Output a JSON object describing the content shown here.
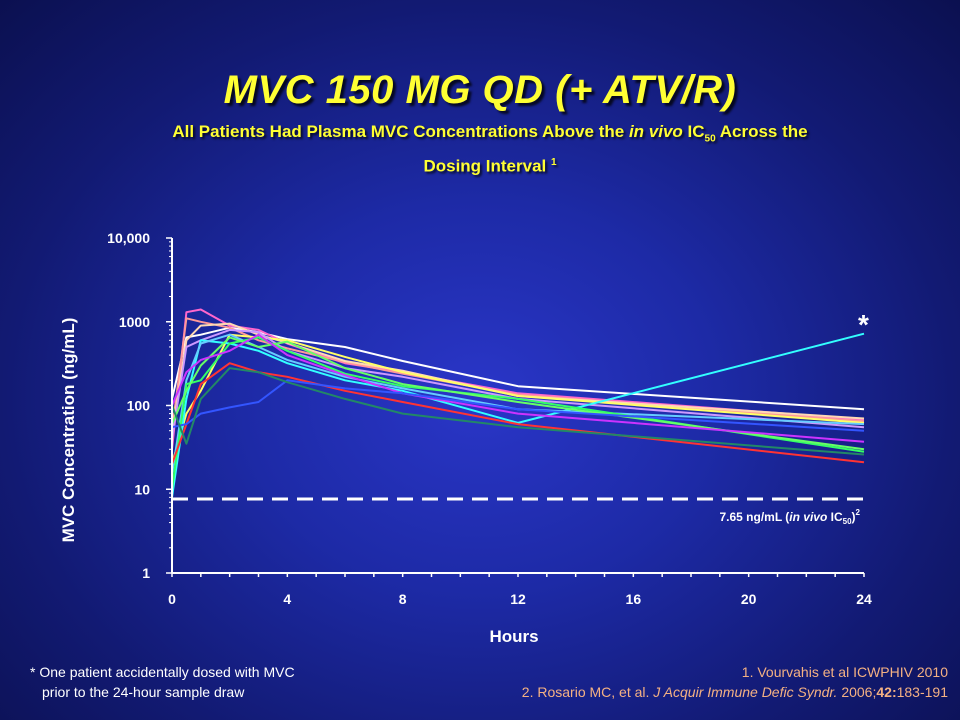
{
  "title": "MVC 150 MG QD (+ ATV/R)",
  "subtitle": {
    "pre": "All Patients Had Plasma MVC Concentrations Above the ",
    "italic": "in vivo",
    "mid": " IC",
    "sub": "50",
    "post": " Across the Dosing Interval ",
    "sup": "1"
  },
  "footnote": {
    "line1": "* One patient accidentally dosed with MVC",
    "line2": "prior to the 24-hour sample draw"
  },
  "references": {
    "ref1": "1.  Vourvahis et al ICWPHIV 2010",
    "ref2_pre": "2. Rosario MC, et al. ",
    "ref2_journal": "J Acquir Immune Defic Syndr.",
    "ref2_year": " 2006;",
    "ref2_vol": "42:",
    "ref2_pages": "183-191"
  },
  "threshold_label": {
    "pre": "7.65 ng/mL (",
    "italic": "in vivo",
    "mid": " IC",
    "sub": "50",
    "post": ")",
    "sup": "2"
  },
  "asterisk": "*",
  "chart_data": {
    "type": "line",
    "xlabel": "Hours",
    "ylabel": "MVC Concentration (ng/mL)",
    "xlim": [
      0,
      24
    ],
    "ylim": [
      1,
      10000
    ],
    "yscale": "log",
    "xticks": [
      0,
      4,
      8,
      12,
      16,
      20,
      24
    ],
    "xtick_labels": [
      "0",
      "4",
      "8",
      "12",
      "16",
      "20",
      "24"
    ],
    "yticks": [
      1,
      10,
      100,
      1000,
      10000
    ],
    "ytick_labels": [
      "1",
      "10",
      "100",
      "1000",
      "10,000"
    ],
    "threshold": {
      "value": 7.65,
      "style": "dashed",
      "color": "#ffffff"
    },
    "x": [
      0,
      0.5,
      1,
      2,
      3,
      4,
      6,
      8,
      12,
      24
    ],
    "series": [
      {
        "color": "#ffffff",
        "values": [
          120,
          650,
          700,
          850,
          750,
          620,
          500,
          340,
          170,
          90
        ]
      },
      {
        "color": "#ff66cc",
        "values": [
          30,
          1300,
          1400,
          900,
          800,
          550,
          320,
          250,
          140,
          68
        ]
      },
      {
        "color": "#ff9999",
        "values": [
          50,
          1100,
          1000,
          850,
          600,
          480,
          330,
          240,
          135,
          65
        ]
      },
      {
        "color": "#ffd9b3",
        "values": [
          45,
          600,
          900,
          950,
          700,
          560,
          340,
          260,
          130,
          70
        ]
      },
      {
        "color": "#ffff66",
        "values": [
          20,
          80,
          150,
          700,
          650,
          600,
          380,
          250,
          130,
          62
        ]
      },
      {
        "color": "#cc99ff",
        "values": [
          40,
          500,
          600,
          800,
          750,
          450,
          280,
          220,
          120,
          55
        ]
      },
      {
        "color": "#33ffff",
        "values": [
          8,
          120,
          600,
          550,
          450,
          320,
          200,
          150,
          62,
          720
        ]
      },
      {
        "color": "#66ccff",
        "values": [
          15,
          200,
          550,
          700,
          500,
          350,
          220,
          160,
          90,
          60
        ]
      },
      {
        "color": "#33ff66",
        "values": [
          10,
          180,
          200,
          550,
          650,
          450,
          240,
          170,
          120,
          28
        ]
      },
      {
        "color": "#66ff66",
        "values": [
          60,
          150,
          300,
          650,
          500,
          580,
          280,
          180,
          110,
          30
        ]
      },
      {
        "color": "#cc33ff",
        "values": [
          100,
          250,
          350,
          450,
          700,
          400,
          230,
          140,
          80,
          37
        ]
      },
      {
        "color": "#ff3333",
        "values": [
          20,
          60,
          180,
          320,
          250,
          220,
          150,
          110,
          60,
          21
        ]
      },
      {
        "color": "#3355ff",
        "values": [
          55,
          60,
          80,
          95,
          110,
          200,
          160,
          140,
          90,
          50
        ]
      },
      {
        "color": "#228866",
        "values": [
          100,
          35,
          120,
          280,
          250,
          190,
          120,
          80,
          55,
          26
        ]
      }
    ]
  }
}
